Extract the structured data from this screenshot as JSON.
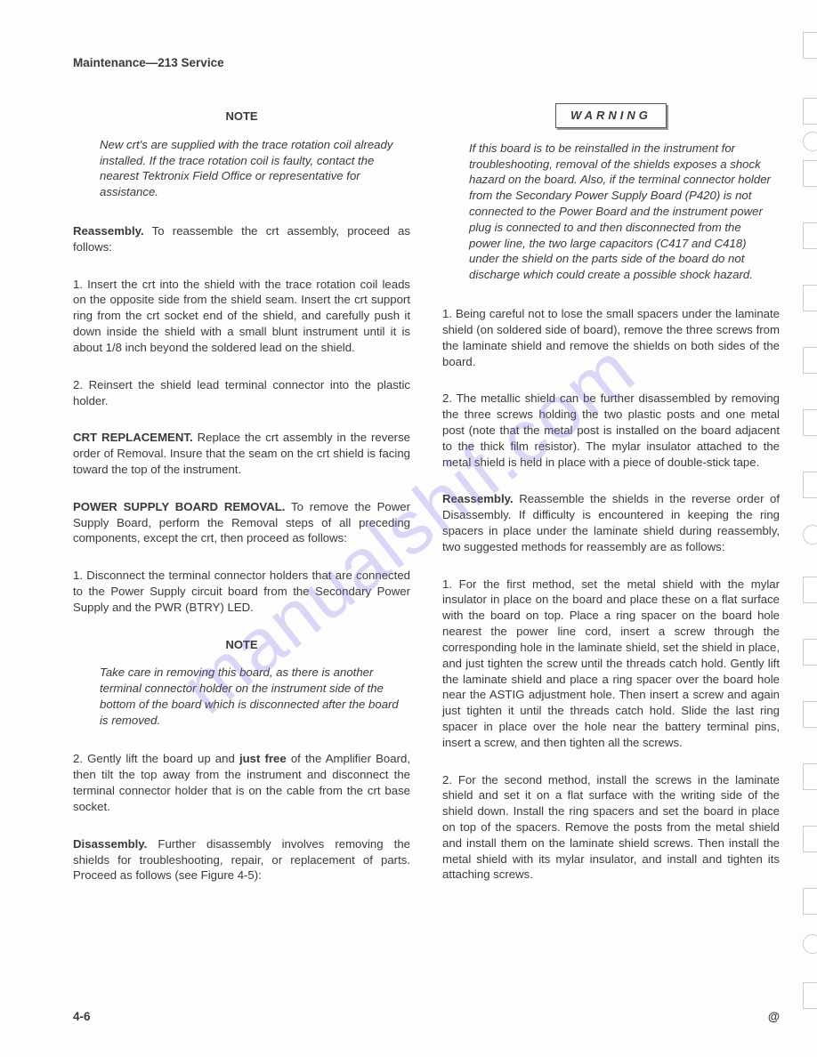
{
  "header": "Maintenance—213 Service",
  "watermark": "manualshif.com",
  "footer": {
    "left": "4-6",
    "right": "@"
  },
  "left": {
    "note1_heading": "NOTE",
    "note1_body": "New crt's are supplied with the trace rotation coil already installed. If the trace rotation coil is faulty, contact the nearest Tektronix Field Office or representative for assistance.",
    "reassembly_label": "Reassembly.",
    "reassembly_body": "To reassemble the crt assembly, proceed as follows:",
    "step1": "1.  Insert the crt into the shield with the trace rotation coil leads on the opposite side from the shield seam. Insert the crt support ring from the crt socket end of the shield, and carefully push it down inside the shield with a small blunt instrument until it is about 1/8 inch beyond the soldered lead on the shield.",
    "step2": "2.  Reinsert the shield lead terminal connector into the plastic holder.",
    "crt_label": "CRT REPLACEMENT.",
    "crt_body": "Replace the crt assembly in the reverse order of Removal. Insure that the seam on the crt shield is facing toward the top of the instrument.",
    "psb_label": "POWER SUPPLY BOARD REMOVAL.",
    "psb_body": "To remove the Power Supply Board, perform the Removal steps of all preceding components, except the crt, then proceed as follows:",
    "psb_step1": "1.  Disconnect the terminal connector holders that are connected to the Power Supply circuit board from the Secondary Power Supply and the PWR (BTRY) LED.",
    "note2_heading": "NOTE",
    "note2_body": "Take care in removing this board, as there is another terminal connector holder on the instrument side of the bottom of the board which is disconnected after the board is removed.",
    "psb_step2a": "2.  Gently lift the board up and ",
    "psb_step2_bold": "just free",
    "psb_step2b": " of the Amplifier Board, then tilt the top away from the instrument and disconnect the terminal connector holder that is on the cable from the crt base socket.",
    "dis_label": "Disassembly.",
    "dis_body": "Further disassembly involves removing the shields for troubleshooting, repair, or replacement of parts. Proceed as follows (see Figure 4-5):"
  },
  "right": {
    "warning_label": "WARNING",
    "warning_body": "If this board is to be reinstalled in the instrument for troubleshooting, removal of the shields exposes a shock hazard on the board. Also, if the terminal connector holder from the Secondary Power Supply Board (P420) is not connected to the Power Board and the instrument power plug is connected to and then disconnected from the power line, the two large capacitors (C417 and C418) under the shield on the parts side of the board do not discharge which could create a possible shock hazard.",
    "dstep1": "1.  Being careful not to lose the small spacers under the laminate shield (on soldered side of board), remove the three screws from the laminate shield and remove the shields on both sides of the board.",
    "dstep2": "2.  The metallic shield can be further disassembled by removing the three screws holding the two plastic posts and one metal post (note that the metal post is installed on the board adjacent to the thick film resistor). The mylar insulator attached to the metal shield is held in place with a piece of double-stick tape.",
    "reasm_label": "Reassembly.",
    "reasm_body": "Reassemble the shields in the reverse order of Disassembly. If difficulty is encountered in keeping the ring spacers in place under the laminate shield during reassembly, two suggested methods for reassembly are as follows:",
    "rstep1": "1.  For the first method, set the metal shield with the mylar insulator in place on the board and place these on a flat surface with the board on top. Place a ring spacer on the board hole nearest the power line cord, insert a screw through the corresponding hole in the laminate shield, set the shield in place, and just tighten the screw until the threads catch hold. Gently lift the laminate shield and place a ring spacer over the board hole near the ASTIG adjustment hole. Then insert a screw and again just tighten it until the threads catch hold. Slide the last ring spacer in place over the hole near the battery terminal pins, insert a screw, and then tighten all the screws.",
    "rstep2": "2.  For the second method, install the screws in the laminate shield and set it on a flat surface with the writing side of the shield down. Install the ring spacers and set the board in place on top of the spacers. Remove the posts from the metal shield and install them on the laminate shield screws. Then install the metal shield with its mylar insulator, and install and tighten its attaching screws."
  },
  "holes": [
    36,
    110,
    180,
    250,
    320,
    390,
    460,
    530,
    648,
    718,
    788,
    858,
    928,
    998,
    1104
  ],
  "round_holes": [
    148,
    590,
    1050
  ]
}
